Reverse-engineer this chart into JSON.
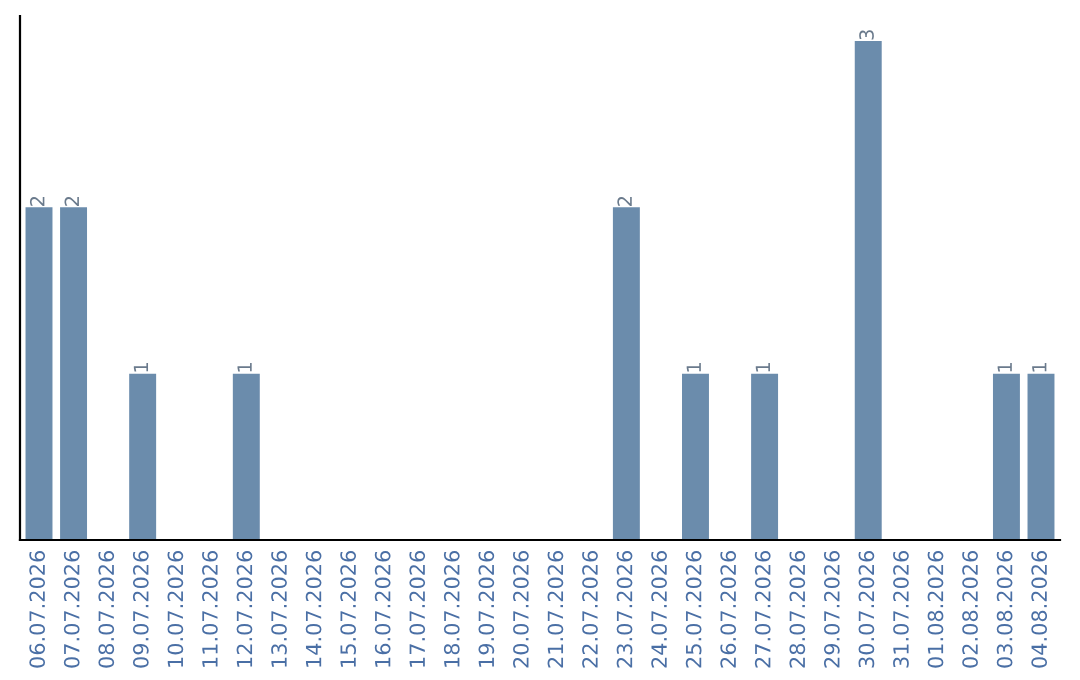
{
  "chart_data": {
    "type": "bar",
    "categories": [
      "06.07.2026",
      "07.07.2026",
      "08.07.2026",
      "09.07.2026",
      "10.07.2026",
      "11.07.2026",
      "12.07.2026",
      "13.07.2026",
      "14.07.2026",
      "15.07.2026",
      "16.07.2026",
      "17.07.2026",
      "18.07.2026",
      "19.07.2026",
      "20.07.2026",
      "21.07.2026",
      "22.07.2026",
      "23.07.2026",
      "24.07.2026",
      "25.07.2026",
      "26.07.2026",
      "27.07.2026",
      "28.07.2026",
      "29.07.2026",
      "30.07.2026",
      "31.07.2026",
      "01.08.2026",
      "02.08.2026",
      "03.08.2026",
      "04.08.2026"
    ],
    "values": [
      2,
      2,
      0,
      1,
      0,
      0,
      1,
      0,
      0,
      0,
      0,
      0,
      0,
      0,
      0,
      0,
      0,
      2,
      0,
      1,
      0,
      1,
      0,
      0,
      3,
      0,
      0,
      0,
      1,
      1
    ],
    "value_labels": [
      "2",
      "2",
      null,
      "1",
      null,
      null,
      "1",
      null,
      null,
      null,
      null,
      null,
      null,
      null,
      null,
      null,
      null,
      "2",
      null,
      "1",
      null,
      "1",
      null,
      null,
      "3",
      null,
      null,
      null,
      "1",
      "1"
    ],
    "color": "#6b8cac",
    "tick_labels": "x",
    "grid": false
  }
}
